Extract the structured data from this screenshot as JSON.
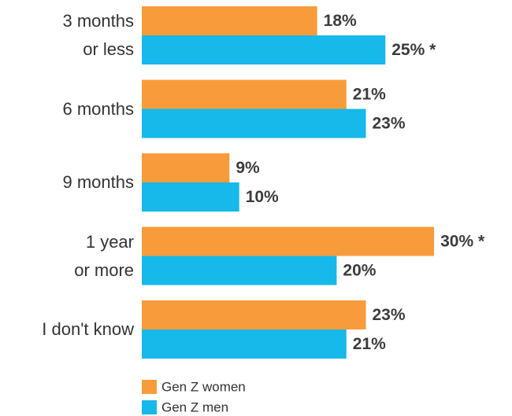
{
  "chart_data": {
    "type": "bar",
    "orientation": "horizontal",
    "categories": [
      "3 months\nor less",
      "6 months",
      "9 months",
      "1 year\nor more",
      "I don't know"
    ],
    "series": [
      {
        "name": "Gen Z women",
        "color": "#f89c3b",
        "values": [
          18,
          21,
          9,
          30,
          23
        ],
        "value_labels": [
          "18%",
          "21%",
          "9%",
          "30% *",
          "23%"
        ]
      },
      {
        "name": "Gen Z men",
        "color": "#17b8ea",
        "values": [
          25,
          23,
          10,
          20,
          21
        ],
        "value_labels": [
          "25% *",
          "23%",
          "10%",
          "20%",
          "21%"
        ]
      }
    ],
    "legend": "bottom-left"
  }
}
